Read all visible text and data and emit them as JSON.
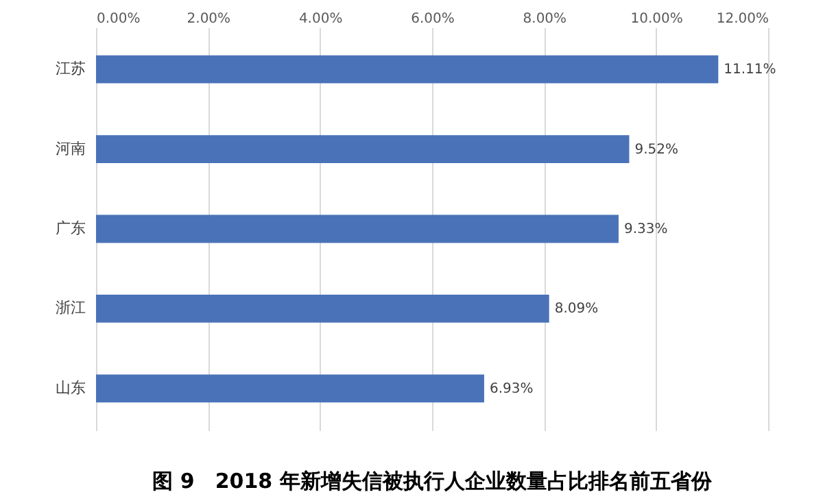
{
  "chart_data": {
    "type": "bar",
    "orientation": "horizontal",
    "title": "图 9　2018 年新增失信被执行人企业数量占比排名前五省份",
    "categories": [
      "江苏",
      "河南",
      "广东",
      "浙江",
      "山东"
    ],
    "values": [
      11.11,
      9.52,
      9.33,
      8.09,
      6.93
    ],
    "value_labels": [
      "11.11%",
      "9.52%",
      "9.33%",
      "8.09%",
      "6.93%"
    ],
    "color": "#4a72b8",
    "xlim": [
      0,
      12
    ],
    "xticks": [
      {
        "value": 0,
        "label": "0.00%"
      },
      {
        "value": 2,
        "label": "2.00%"
      },
      {
        "value": 4,
        "label": "4.00%"
      },
      {
        "value": 6,
        "label": "6.00%"
      },
      {
        "value": 8,
        "label": "8.00%"
      },
      {
        "value": 10,
        "label": "10.00%"
      },
      {
        "value": 12,
        "label": "12.00%"
      }
    ],
    "grid": "x"
  }
}
